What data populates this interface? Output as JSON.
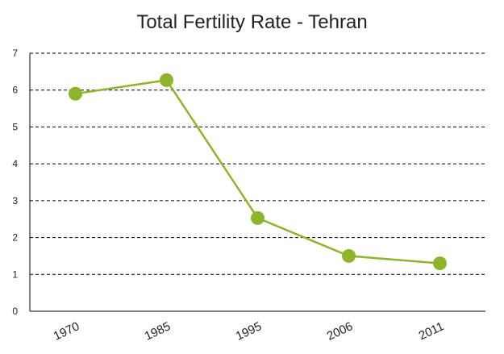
{
  "chart_data": {
    "type": "line",
    "title": "Total Fertility Rate - Tehran",
    "xlabel": "",
    "ylabel": "",
    "categories": [
      "1970",
      "1985",
      "1995",
      "2006",
      "2011"
    ],
    "series": [
      {
        "values": [
          5.9,
          6.27,
          2.53,
          1.5,
          1.3
        ]
      }
    ],
    "ylim": [
      0,
      7
    ],
    "yticks": [
      0,
      1,
      2,
      3,
      4,
      5,
      6,
      7
    ],
    "grid": "horizontal dashed",
    "colors": {
      "series": "#8db52b",
      "grid": "#000000",
      "axis": "#000000"
    }
  }
}
